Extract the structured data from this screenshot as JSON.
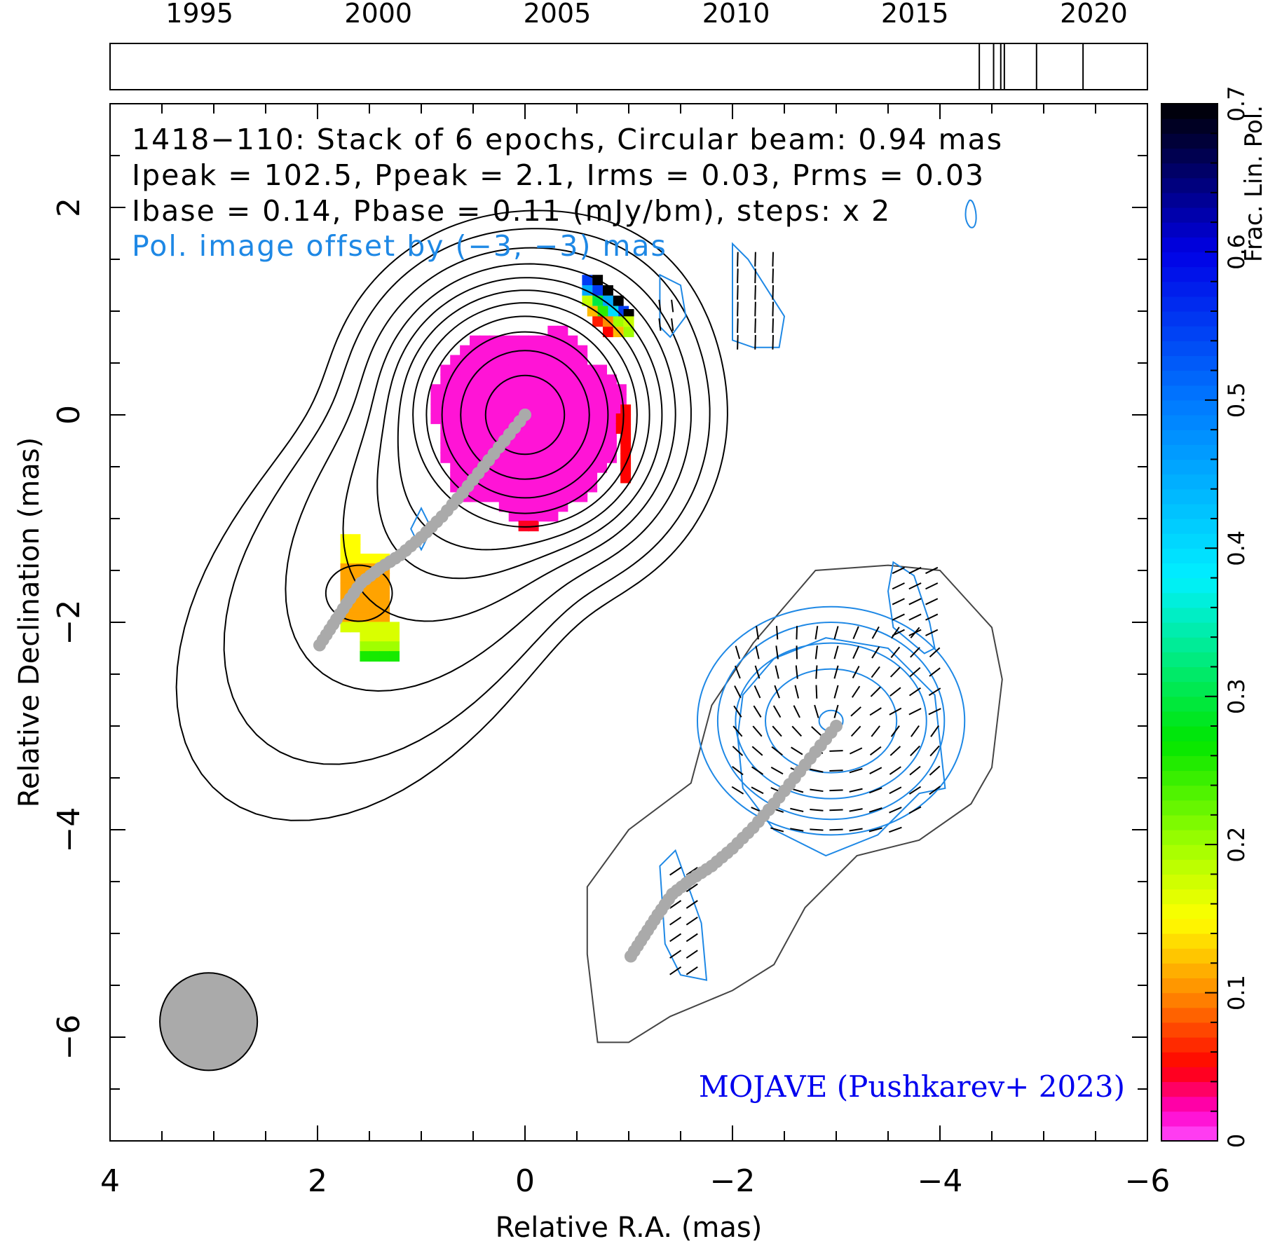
{
  "chart_data": {
    "type": "contour",
    "header": {
      "line1": "1418−110: Stack of 6 epochs, Circular beam: 0.94 mas",
      "line2": "Ipeak = 102.5, Ppeak = 2.1, Irms = 0.03, Prms = 0.03",
      "line3": "Ibase = 0.14, Pbase = 0.11 (mJy/bm), steps: x 2",
      "line4": "Pol. image offset by (−3, −3) mas"
    },
    "credit": "MOJAVE (Pushkarev+ 2023)",
    "xlabel": "Relative R.A. (mas)",
    "ylabel": "Relative Declination (mas)",
    "xlim": [
      4,
      -6
    ],
    "ylim": [
      -7,
      3
    ],
    "xticks": [
      "4",
      "2",
      "0",
      "−2",
      "−4",
      "−6"
    ],
    "yticks": [
      "−6",
      "−4",
      "−2",
      "0",
      "2"
    ],
    "timeline": {
      "range": [
        1992.5,
        2021.5
      ],
      "labels": [
        "1995",
        "2000",
        "2005",
        "2010",
        "2015",
        "2020"
      ],
      "epochs": [
        2016.8,
        2017.2,
        2017.4,
        2017.5,
        2018.4,
        2019.7
      ]
    },
    "colorbar": {
      "label": "Frac. Lin. Pol.",
      "range": [
        0,
        0.7
      ],
      "ticks": [
        "0",
        "0.1",
        "0.2",
        "0.3",
        "0.4",
        "0.5",
        "0.6",
        "0.7"
      ]
    },
    "beam": {
      "ra": 3.05,
      "dec": -5.85,
      "diameter_mas": 0.94
    },
    "stokes_I": {
      "peak_ra": 0,
      "peak_dec": 0,
      "peak": 102.5,
      "base": 0.14,
      "step_factor": 2
    },
    "pol": {
      "peak": 2.1,
      "base": 0.11,
      "offset": [
        -3,
        -3
      ]
    },
    "ridgeline": [
      [
        0,
        0
      ],
      [
        0.2,
        -0.25
      ],
      [
        0.4,
        -0.5
      ],
      [
        0.6,
        -0.75
      ],
      [
        0.8,
        -0.98
      ],
      [
        1.0,
        -1.18
      ],
      [
        1.2,
        -1.35
      ],
      [
        1.4,
        -1.48
      ],
      [
        1.58,
        -1.62
      ],
      [
        1.72,
        -1.82
      ],
      [
        1.85,
        -2.02
      ],
      [
        1.98,
        -2.22
      ]
    ],
    "colors": {
      "stokes_I_contours": "#000000",
      "pol_contours": "#1e88e5",
      "pol_base_contour": "#444444",
      "ridgeline": "#aaaaaa",
      "beam": "#aaaaaa",
      "credit": "#0000ee",
      "offset_note": "#1e88e5"
    }
  }
}
